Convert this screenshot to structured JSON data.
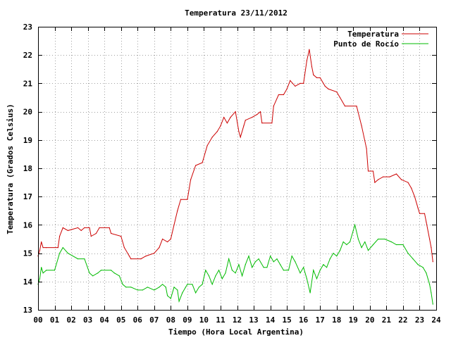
{
  "chart_data": {
    "type": "line",
    "title": "Temperatura 23/11/2012",
    "xlabel": "Tiempo (Hora Local Argentina)",
    "ylabel": "Temperatura (Grados Celsius)",
    "xlim": [
      0,
      24
    ],
    "ylim": [
      13,
      23
    ],
    "x_ticks": [
      "00",
      "01",
      "02",
      "03",
      "04",
      "05",
      "06",
      "07",
      "08",
      "09",
      "10",
      "11",
      "12",
      "13",
      "14",
      "15",
      "16",
      "17",
      "18",
      "19",
      "20",
      "21",
      "22",
      "23",
      "24"
    ],
    "y_ticks": [
      "13",
      "14",
      "15",
      "16",
      "17",
      "18",
      "19",
      "20",
      "21",
      "22",
      "23"
    ],
    "grid": true,
    "legend_position": "top-right",
    "series": [
      {
        "name": "Temperatura",
        "color": "#cc0000",
        "points": [
          [
            0.0,
            14.9
          ],
          [
            0.1,
            15.1
          ],
          [
            0.2,
            15.4
          ],
          [
            0.3,
            15.2
          ],
          [
            0.5,
            15.2
          ],
          [
            1.2,
            15.2
          ],
          [
            1.3,
            15.6
          ],
          [
            1.5,
            15.9
          ],
          [
            1.8,
            15.8
          ],
          [
            2.4,
            15.9
          ],
          [
            2.6,
            15.8
          ],
          [
            2.8,
            15.9
          ],
          [
            3.1,
            15.9
          ],
          [
            3.2,
            15.6
          ],
          [
            3.5,
            15.7
          ],
          [
            3.7,
            15.9
          ],
          [
            4.3,
            15.9
          ],
          [
            4.4,
            15.7
          ],
          [
            5.0,
            15.6
          ],
          [
            5.2,
            15.2
          ],
          [
            5.5,
            14.9
          ],
          [
            5.6,
            14.8
          ],
          [
            6.2,
            14.8
          ],
          [
            6.5,
            14.9
          ],
          [
            7.0,
            15.0
          ],
          [
            7.3,
            15.2
          ],
          [
            7.5,
            15.5
          ],
          [
            7.8,
            15.4
          ],
          [
            8.0,
            15.5
          ],
          [
            8.2,
            16.0
          ],
          [
            8.4,
            16.5
          ],
          [
            8.6,
            16.9
          ],
          [
            9.0,
            16.9
          ],
          [
            9.2,
            17.6
          ],
          [
            9.5,
            18.1
          ],
          [
            9.9,
            18.2
          ],
          [
            10.2,
            18.8
          ],
          [
            10.5,
            19.1
          ],
          [
            10.8,
            19.3
          ],
          [
            11.0,
            19.5
          ],
          [
            11.2,
            19.8
          ],
          [
            11.4,
            19.6
          ],
          [
            11.6,
            19.8
          ],
          [
            11.9,
            20.0
          ],
          [
            12.1,
            19.3
          ],
          [
            12.2,
            19.1
          ],
          [
            12.4,
            19.5
          ],
          [
            12.5,
            19.7
          ],
          [
            12.9,
            19.8
          ],
          [
            13.2,
            19.9
          ],
          [
            13.4,
            20.0
          ],
          [
            13.5,
            19.6
          ],
          [
            14.1,
            19.6
          ],
          [
            14.2,
            20.2
          ],
          [
            14.5,
            20.6
          ],
          [
            14.8,
            20.6
          ],
          [
            15.0,
            20.8
          ],
          [
            15.2,
            21.1
          ],
          [
            15.5,
            20.9
          ],
          [
            15.8,
            21.0
          ],
          [
            16.0,
            21.0
          ],
          [
            16.2,
            21.8
          ],
          [
            16.35,
            22.2
          ],
          [
            16.5,
            21.6
          ],
          [
            16.6,
            21.3
          ],
          [
            16.8,
            21.2
          ],
          [
            17.0,
            21.2
          ],
          [
            17.3,
            20.9
          ],
          [
            17.5,
            20.8
          ],
          [
            18.0,
            20.7
          ],
          [
            18.2,
            20.5
          ],
          [
            18.5,
            20.2
          ],
          [
            19.2,
            20.2
          ],
          [
            19.5,
            19.5
          ],
          [
            19.8,
            18.7
          ],
          [
            19.9,
            17.9
          ],
          [
            20.2,
            17.9
          ],
          [
            20.3,
            17.5
          ],
          [
            20.5,
            17.6
          ],
          [
            20.8,
            17.7
          ],
          [
            21.2,
            17.7
          ],
          [
            21.6,
            17.8
          ],
          [
            21.9,
            17.6
          ],
          [
            22.3,
            17.5
          ],
          [
            22.5,
            17.3
          ],
          [
            22.7,
            17.0
          ],
          [
            22.9,
            16.6
          ],
          [
            23.0,
            16.4
          ],
          [
            23.3,
            16.4
          ],
          [
            23.4,
            16.1
          ],
          [
            23.6,
            15.5
          ],
          [
            23.7,
            15.2
          ],
          [
            23.8,
            14.7
          ]
        ]
      },
      {
        "name": "Punto de Rocío",
        "color": "#00bb00",
        "points": [
          [
            0.0,
            13.9
          ],
          [
            0.1,
            14.1
          ],
          [
            0.2,
            14.5
          ],
          [
            0.3,
            14.3
          ],
          [
            0.5,
            14.4
          ],
          [
            1.0,
            14.4
          ],
          [
            1.3,
            15.0
          ],
          [
            1.5,
            15.2
          ],
          [
            1.8,
            15.0
          ],
          [
            2.4,
            14.8
          ],
          [
            2.8,
            14.8
          ],
          [
            3.1,
            14.3
          ],
          [
            3.3,
            14.2
          ],
          [
            3.6,
            14.3
          ],
          [
            3.8,
            14.4
          ],
          [
            4.4,
            14.4
          ],
          [
            4.6,
            14.3
          ],
          [
            4.9,
            14.2
          ],
          [
            5.1,
            13.9
          ],
          [
            5.3,
            13.8
          ],
          [
            5.6,
            13.8
          ],
          [
            6.0,
            13.7
          ],
          [
            6.3,
            13.7
          ],
          [
            6.6,
            13.8
          ],
          [
            7.0,
            13.7
          ],
          [
            7.3,
            13.8
          ],
          [
            7.5,
            13.9
          ],
          [
            7.7,
            13.8
          ],
          [
            7.8,
            13.5
          ],
          [
            8.0,
            13.4
          ],
          [
            8.2,
            13.8
          ],
          [
            8.4,
            13.7
          ],
          [
            8.5,
            13.3
          ],
          [
            8.7,
            13.6
          ],
          [
            8.9,
            13.8
          ],
          [
            9.0,
            13.9
          ],
          [
            9.3,
            13.9
          ],
          [
            9.5,
            13.6
          ],
          [
            9.7,
            13.8
          ],
          [
            9.9,
            13.9
          ],
          [
            10.1,
            14.4
          ],
          [
            10.3,
            14.2
          ],
          [
            10.5,
            13.9
          ],
          [
            10.7,
            14.2
          ],
          [
            10.9,
            14.4
          ],
          [
            11.1,
            14.1
          ],
          [
            11.3,
            14.3
          ],
          [
            11.5,
            14.8
          ],
          [
            11.7,
            14.4
          ],
          [
            11.9,
            14.3
          ],
          [
            12.1,
            14.6
          ],
          [
            12.3,
            14.2
          ],
          [
            12.5,
            14.6
          ],
          [
            12.7,
            14.9
          ],
          [
            12.9,
            14.5
          ],
          [
            13.1,
            14.7
          ],
          [
            13.3,
            14.8
          ],
          [
            13.6,
            14.5
          ],
          [
            13.8,
            14.5
          ],
          [
            14.0,
            14.9
          ],
          [
            14.2,
            14.7
          ],
          [
            14.4,
            14.8
          ],
          [
            14.6,
            14.6
          ],
          [
            14.8,
            14.4
          ],
          [
            15.1,
            14.4
          ],
          [
            15.3,
            14.9
          ],
          [
            15.5,
            14.7
          ],
          [
            15.8,
            14.3
          ],
          [
            16.0,
            14.5
          ],
          [
            16.2,
            14.1
          ],
          [
            16.4,
            13.6
          ],
          [
            16.6,
            14.4
          ],
          [
            16.8,
            14.1
          ],
          [
            17.0,
            14.4
          ],
          [
            17.2,
            14.6
          ],
          [
            17.4,
            14.5
          ],
          [
            17.6,
            14.8
          ],
          [
            17.8,
            15.0
          ],
          [
            18.0,
            14.9
          ],
          [
            18.2,
            15.1
          ],
          [
            18.4,
            15.4
          ],
          [
            18.6,
            15.3
          ],
          [
            18.8,
            15.4
          ],
          [
            19.0,
            15.8
          ],
          [
            19.1,
            16.0
          ],
          [
            19.3,
            15.5
          ],
          [
            19.5,
            15.2
          ],
          [
            19.7,
            15.4
          ],
          [
            19.9,
            15.1
          ],
          [
            20.2,
            15.3
          ],
          [
            20.5,
            15.5
          ],
          [
            20.9,
            15.5
          ],
          [
            21.3,
            15.4
          ],
          [
            21.6,
            15.3
          ],
          [
            22.0,
            15.3
          ],
          [
            22.3,
            15.0
          ],
          [
            22.6,
            14.8
          ],
          [
            22.9,
            14.6
          ],
          [
            23.2,
            14.5
          ],
          [
            23.4,
            14.3
          ],
          [
            23.6,
            13.9
          ],
          [
            23.7,
            13.6
          ],
          [
            23.8,
            13.2
          ]
        ]
      }
    ]
  }
}
